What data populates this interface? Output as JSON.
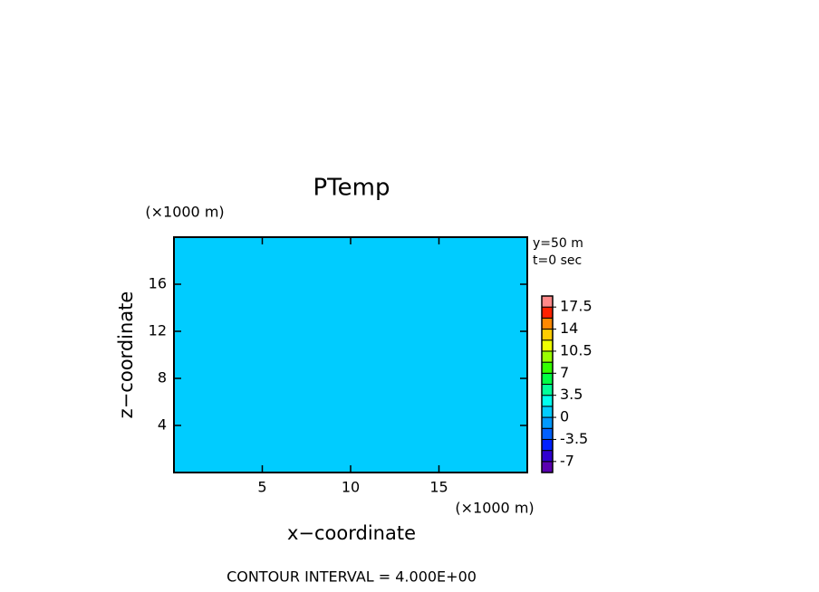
{
  "chart_data": {
    "type": "contour",
    "title": "PTemp",
    "x_label": "x−coordinate",
    "y_label": "z−coordinate",
    "x_unit": "(×1000 m)",
    "y_unit": "(×1000 m)",
    "annotations": [
      "y=50 m",
      "t=0 sec"
    ],
    "footer": "CONTOUR INTERVAL = 4.000E+00",
    "xlim": [
      0,
      20
    ],
    "xticks": [
      5,
      10,
      15
    ],
    "ylim": [
      0,
      20
    ],
    "yticks": [
      4,
      8,
      12,
      16
    ],
    "field": 0,
    "colorbar": {
      "levels": [
        -8.75,
        -7,
        -5.25,
        -3.5,
        -1.75,
        0,
        1.75,
        3.5,
        5.25,
        7,
        8.75,
        10.5,
        12.25,
        14,
        15.75,
        17.5,
        19.25
      ],
      "colors": [
        "#5a00b0",
        "#3000d0",
        "#0020ff",
        "#0060ff",
        "#0099ff",
        "#00ccff",
        "#00ffee",
        "#00ff99",
        "#00ff44",
        "#33ff00",
        "#99ff00",
        "#eeff00",
        "#ffcc00",
        "#ff8800",
        "#ff2200",
        "#ff8888"
      ],
      "ticks": [
        17.5,
        14,
        10.5,
        7,
        3.5,
        0,
        -3.5,
        -7
      ]
    }
  }
}
